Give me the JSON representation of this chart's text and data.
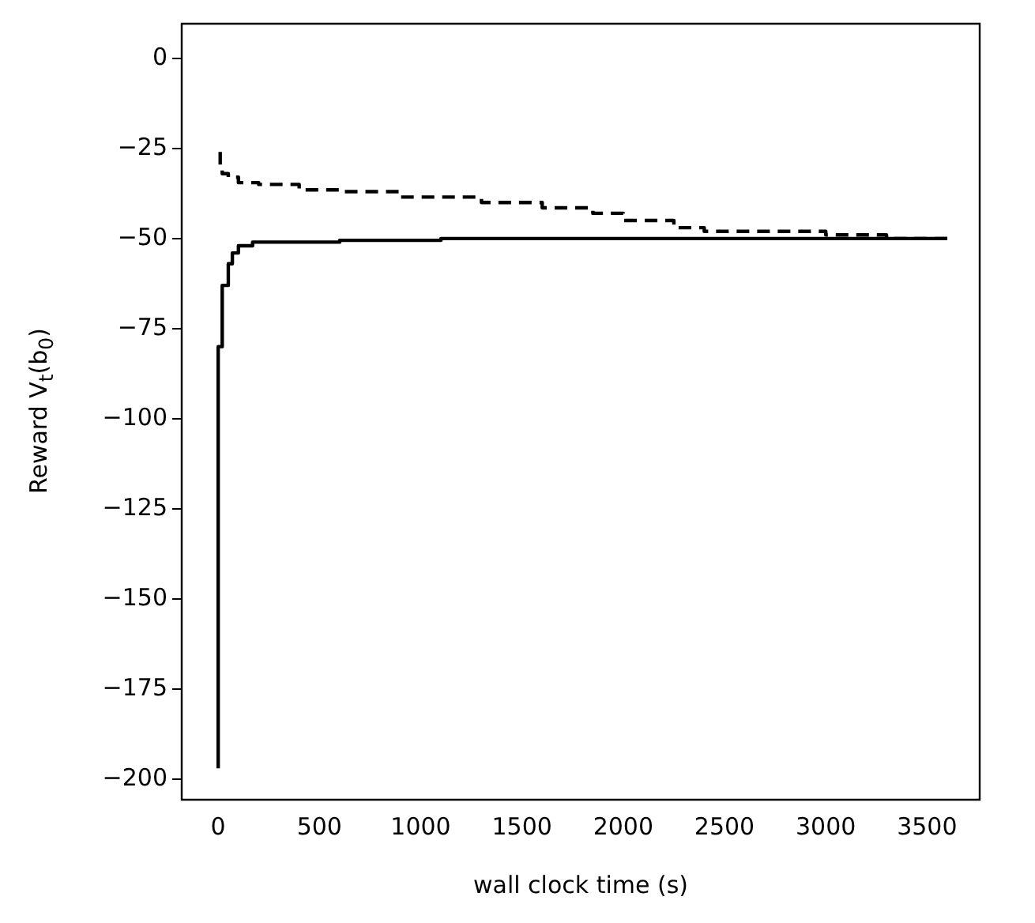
{
  "chart_data": {
    "type": "step",
    "xlabel": "wall clock time (s)",
    "ylabel": "Reward V$_{t}$(b$_{0}$)",
    "xlim": [
      -180,
      3760
    ],
    "ylim": [
      -205.7,
      9.6
    ],
    "xticks": [
      0,
      500,
      1000,
      1500,
      2000,
      2500,
      3000,
      3500
    ],
    "yticks": [
      -200,
      -175,
      -150,
      -125,
      -100,
      -75,
      -50,
      -25,
      0
    ],
    "grid": false,
    "legend": false,
    "series": [
      {
        "color": "#000000",
        "line_style": "solid",
        "x": [
          0,
          20,
          50,
          70,
          100,
          170,
          600,
          1100,
          1600,
          3600
        ],
        "values": [
          -197,
          -80,
          -63,
          -57,
          -54,
          -52,
          -51,
          -50.5,
          -50,
          -50
        ]
      },
      {
        "color": "#000000",
        "line_style": "dashed",
        "x": [
          10,
          20,
          50,
          100,
          200,
          400,
          600,
          900,
          1300,
          1600,
          1850,
          2000,
          2250,
          2400,
          3000,
          3300,
          3600
        ],
        "values": [
          -26,
          -30,
          -32,
          -33,
          -34.5,
          -35,
          -36.5,
          -37,
          -38.5,
          -40,
          -41.5,
          -43,
          -45,
          -47,
          -48,
          -49,
          -50
        ]
      }
    ]
  }
}
